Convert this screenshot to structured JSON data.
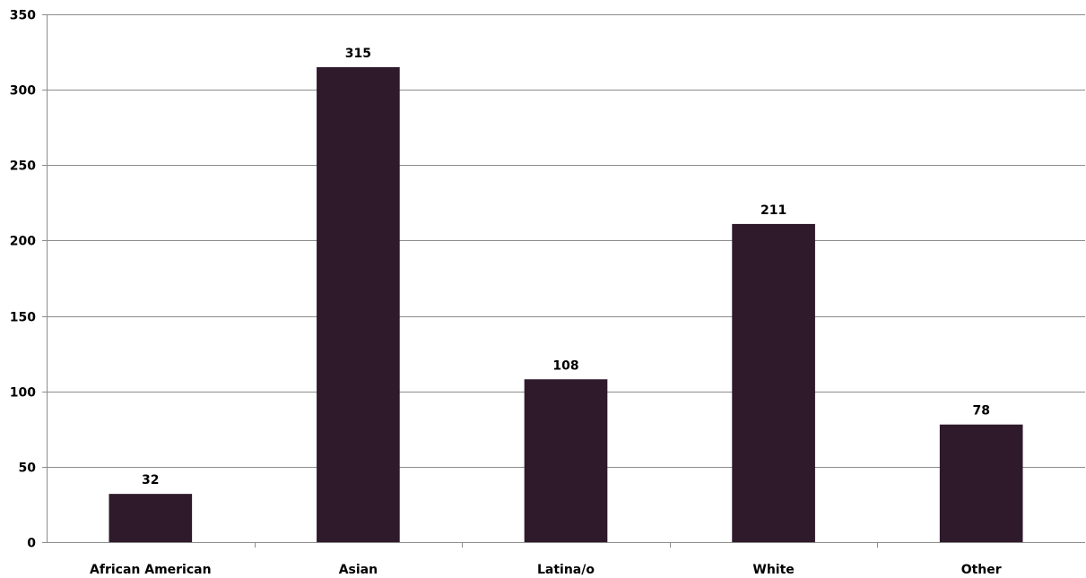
{
  "chart_data": {
    "type": "bar",
    "title": "",
    "xlabel": "",
    "ylabel": "",
    "categories": [
      "African American",
      "Asian",
      "Latina/o",
      "White",
      "Other"
    ],
    "values": [
      32,
      315,
      108,
      211,
      78
    ],
    "data_labels": [
      "32",
      "315",
      "108",
      "211",
      "78"
    ],
    "ylim": [
      0,
      350
    ],
    "yticks": [
      0,
      50,
      100,
      150,
      200,
      250,
      300,
      350
    ],
    "ytick_labels": [
      "0",
      "50",
      "100",
      "150",
      "200",
      "250",
      "300",
      "350"
    ],
    "grid": true,
    "legend": "none",
    "bar_color": "#2e1a2b"
  }
}
